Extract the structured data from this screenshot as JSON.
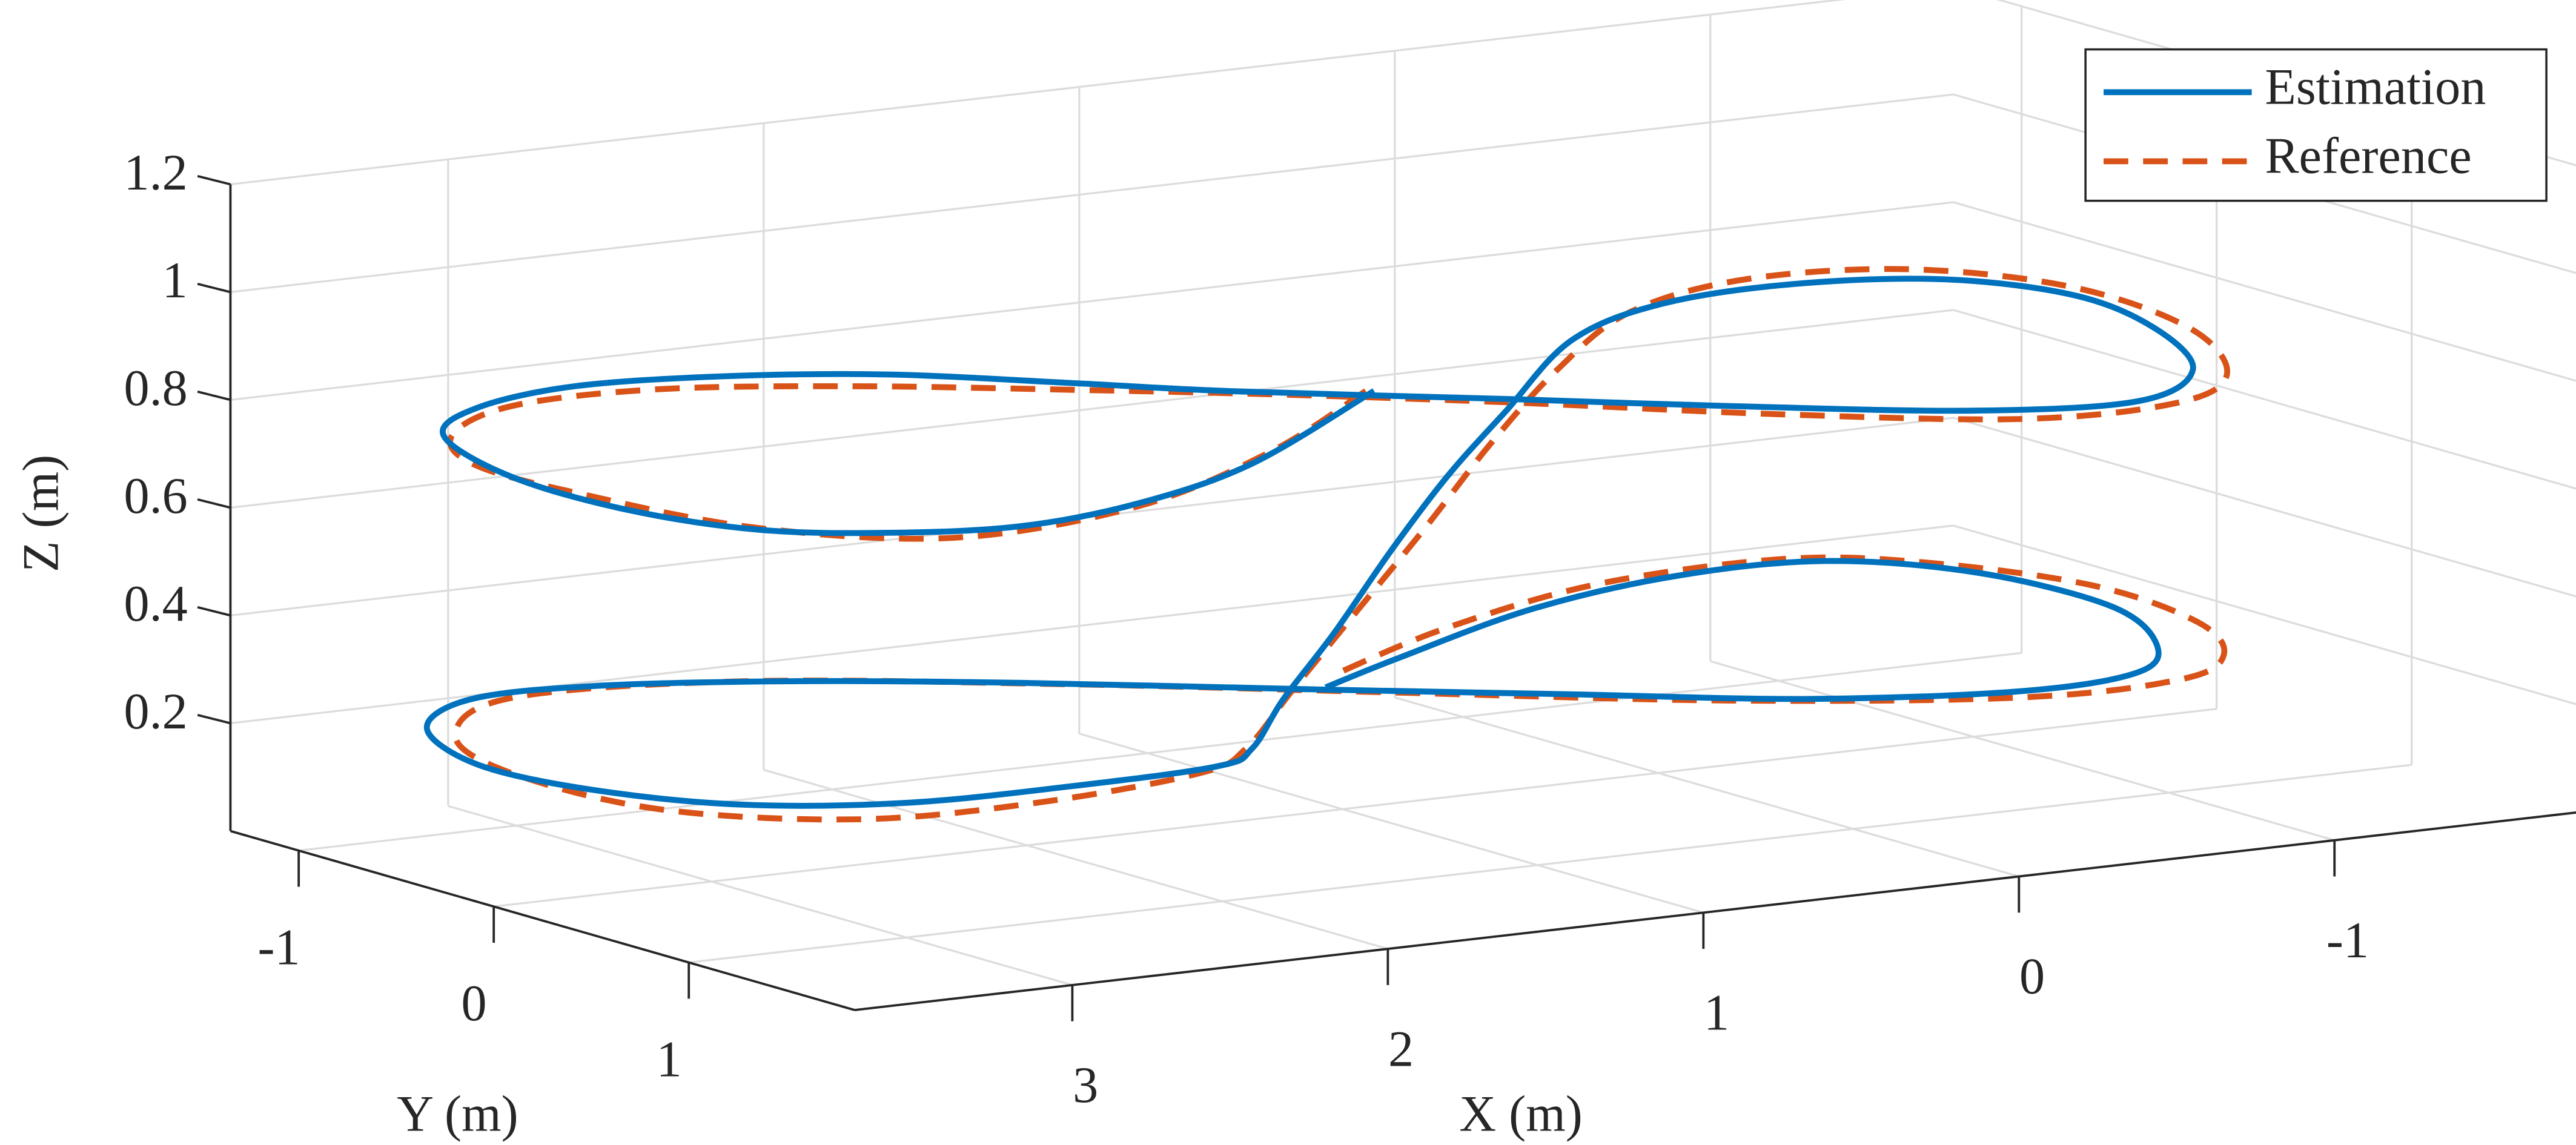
{
  "chart_data": {
    "type": "line3d",
    "xlabel": "X (m)",
    "ylabel": "Y (m)",
    "zlabel": "Z (m)",
    "xlim": [
      -1.77,
      3.69
    ],
    "ylim": [
      -1.35,
      1.85
    ],
    "zlim": [
      0,
      1.2
    ],
    "x_reversed": true,
    "xticks": [
      -1,
      0,
      1,
      2,
      3
    ],
    "yticks": [
      -1,
      0,
      1
    ],
    "zticks": [
      0.2,
      0.4,
      0.6,
      0.8,
      1,
      1.2
    ],
    "grid": true,
    "legend": "northeast",
    "series": [
      {
        "name": "Estimation",
        "color": "#0072BD",
        "style": "solid",
        "x": [
          1.03,
          1.88,
          2.45,
          2.9,
          3.25,
          3.52,
          3.66,
          3.66,
          3.49,
          3.19,
          2.8,
          2.39,
          2.0,
          1.65,
          1.35,
          0.78,
          0.35,
          -0.17,
          -0.62,
          -0.99,
          -1.23,
          -1.31,
          -1.14,
          -0.76,
          -0.31,
          0.18,
          0.55,
          0.86,
          1.15,
          1.46,
          1.67,
          1.83,
          2.01,
          2.5,
          3.0,
          3.39,
          3.61,
          3.67,
          3.5,
          3.17,
          2.79,
          2.3,
          1.79,
          1.17,
          0.65,
          0.13,
          -0.42,
          -0.83,
          -1.1,
          -1.28,
          -1.24,
          -0.99,
          -0.54,
          0.05,
          0.74,
          1.14
        ],
        "y": [
          0.21,
          0.96,
          1.3,
          1.42,
          1.31,
          1.08,
          0.63,
          0.04,
          -0.58,
          -0.89,
          -1.02,
          -0.93,
          -0.71,
          -0.33,
          0.01,
          0.52,
          0.92,
          1.34,
          1.46,
          1.14,
          0.56,
          0.02,
          -0.38,
          -0.54,
          -0.48,
          -0.15,
          0.11,
          0.31,
          0.49,
          0.7,
          0.78,
          0.88,
          0.99,
          1.03,
          1.0,
          0.78,
          0.37,
          -0.11,
          -0.65,
          -0.96,
          -0.95,
          -0.72,
          -0.36,
          0.16,
          0.58,
          1.0,
          1.21,
          1.13,
          0.77,
          0.24,
          -0.37,
          -0.74,
          -0.77,
          -0.56,
          -0.13,
          0.14
        ],
        "z": [
          0.8,
          0.8,
          0.8,
          0.8,
          0.8,
          0.8,
          0.8,
          0.8,
          0.8,
          0.8,
          0.8,
          0.8,
          0.8,
          0.8,
          0.8,
          0.8,
          0.8,
          0.8,
          0.8,
          0.8,
          0.8,
          0.8,
          0.8,
          0.8,
          0.8,
          0.8,
          0.72,
          0.64,
          0.54,
          0.43,
          0.33,
          0.26,
          0.25,
          0.25,
          0.25,
          0.25,
          0.25,
          0.25,
          0.25,
          0.25,
          0.25,
          0.25,
          0.25,
          0.25,
          0.25,
          0.25,
          0.25,
          0.25,
          0.25,
          0.25,
          0.25,
          0.25,
          0.25,
          0.25,
          0.25,
          0.25
        ]
      },
      {
        "name": "Reference",
        "color": "#D95319",
        "style": "dashed",
        "x": [
          1.05,
          1.75,
          2.48,
          3.14,
          3.51,
          3.64,
          3.65,
          3.47,
          3.1,
          2.64,
          2.17,
          1.71,
          1.26,
          0.8,
          0.3,
          -0.22,
          -0.69,
          -1.03,
          -1.31,
          -1.37,
          -1.14,
          -0.69,
          -0.17,
          0.45,
          0.76,
          1.13,
          1.46,
          1.71,
          1.93,
          2.1,
          2.7,
          3.24,
          3.61,
          3.66,
          3.49,
          3.06,
          2.41,
          1.69,
          1.01,
          0.33,
          -0.36,
          -0.86,
          -1.15,
          -1.35,
          -1.4,
          -1.2,
          -0.9,
          -0.29,
          0.4,
          1.02
        ],
        "y": [
          0.2,
          0.84,
          1.34,
          1.47,
          1.05,
          0.35,
          -0.16,
          -0.57,
          -0.86,
          -0.86,
          -0.61,
          -0.25,
          0.13,
          0.57,
          1.1,
          1.52,
          1.54,
          1.25,
          0.61,
          -0.09,
          -0.56,
          -0.67,
          -0.42,
          0.21,
          0.37,
          0.64,
          0.83,
          0.89,
          1.01,
          1.05,
          1.19,
          1.14,
          0.72,
          0.04,
          -0.52,
          -0.92,
          -0.79,
          -0.27,
          0.32,
          0.9,
          1.29,
          1.29,
          1.04,
          0.58,
          -0.04,
          -0.58,
          -0.83,
          -0.78,
          -0.44,
          -0.01
        ],
        "z": [
          0.8,
          0.8,
          0.8,
          0.8,
          0.8,
          0.8,
          0.8,
          0.8,
          0.8,
          0.8,
          0.8,
          0.8,
          0.8,
          0.8,
          0.8,
          0.8,
          0.8,
          0.8,
          0.8,
          0.8,
          0.8,
          0.8,
          0.8,
          0.8,
          0.7,
          0.6,
          0.49,
          0.36,
          0.28,
          0.25,
          0.25,
          0.25,
          0.25,
          0.25,
          0.25,
          0.25,
          0.25,
          0.25,
          0.25,
          0.25,
          0.25,
          0.25,
          0.25,
          0.25,
          0.25,
          0.25,
          0.25,
          0.25,
          0.25,
          0.25
        ]
      }
    ]
  }
}
